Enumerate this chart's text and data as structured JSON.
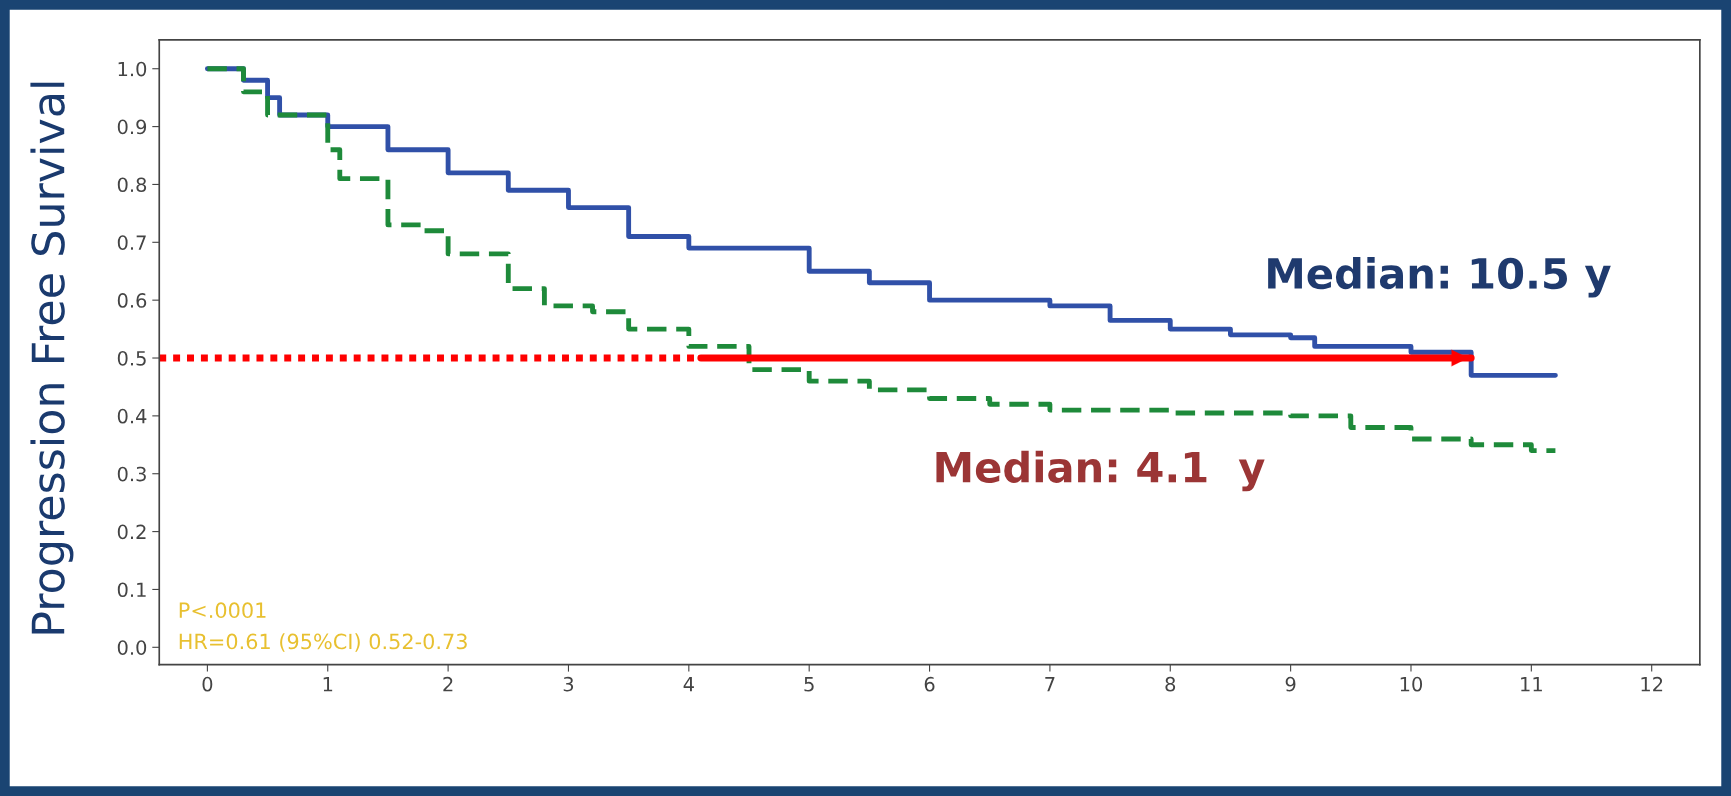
{
  "chart_data": {
    "type": "step",
    "ylabel": "Progression Free Survival",
    "xlim": [
      -0.4,
      12.4
    ],
    "xticks": [
      0,
      1,
      2,
      3,
      4,
      5,
      6,
      7,
      8,
      9,
      10,
      11,
      12
    ],
    "ylim": [
      -0.03,
      1.05
    ],
    "yticks": [
      {
        "value": 0.0,
        "label": "0.0"
      },
      0.1,
      0.2,
      0.3,
      0.4,
      0.5,
      0.6,
      0.7,
      0.8,
      0.9,
      {
        "value": 1.0,
        "label": "1.0"
      }
    ],
    "grid": false,
    "legend": false,
    "series": [
      {
        "color": "#3050a8",
        "line_style": "solid",
        "x": [
          0,
          0.3,
          0.5,
          0.6,
          1,
          1.5,
          2,
          2.5,
          3,
          3.5,
          4,
          5,
          5.5,
          6,
          7,
          7.5,
          8,
          8.5,
          9,
          9.2,
          10,
          10.5,
          11.2
        ],
        "values": [
          1.0,
          0.98,
          0.95,
          0.92,
          0.9,
          0.86,
          0.82,
          0.79,
          0.76,
          0.71,
          0.69,
          0.65,
          0.63,
          0.6,
          0.59,
          0.565,
          0.55,
          0.54,
          0.535,
          0.52,
          0.51,
          0.47,
          0.47
        ]
      },
      {
        "color": "#1e8a3a",
        "line_style": "dashed",
        "x": [
          0,
          0.3,
          0.5,
          1,
          1.1,
          1.5,
          1.8,
          2,
          2.5,
          2.8,
          3.2,
          3.5,
          4,
          4.5,
          5,
          5.5,
          6,
          6.5,
          7,
          8,
          9,
          9.5,
          10,
          10.5,
          11,
          11.2
        ],
        "values": [
          1.0,
          0.96,
          0.92,
          0.86,
          0.81,
          0.73,
          0.72,
          0.68,
          0.62,
          0.59,
          0.58,
          0.55,
          0.52,
          0.48,
          0.46,
          0.445,
          0.43,
          0.42,
          0.41,
          0.405,
          0.4,
          0.38,
          0.36,
          0.35,
          0.34,
          0.34
        ]
      },
      {
        "type": "line",
        "color": "#ff0000",
        "line_style": "dotted",
        "x": [
          -0.4,
          4.1
        ],
        "values": [
          0.5,
          0.5
        ]
      },
      {
        "type": "line",
        "color": "#ff0000",
        "line_style": "solid",
        "x": [
          4.1,
          10.5
        ],
        "values": [
          0.5,
          0.5
        ]
      }
    ],
    "annotations": [
      "Median: 10.5 y",
      "Median: 4.1  y",
      "P<.0001",
      "HR=0.61 (95%CI) 0.52-0.73"
    ]
  }
}
